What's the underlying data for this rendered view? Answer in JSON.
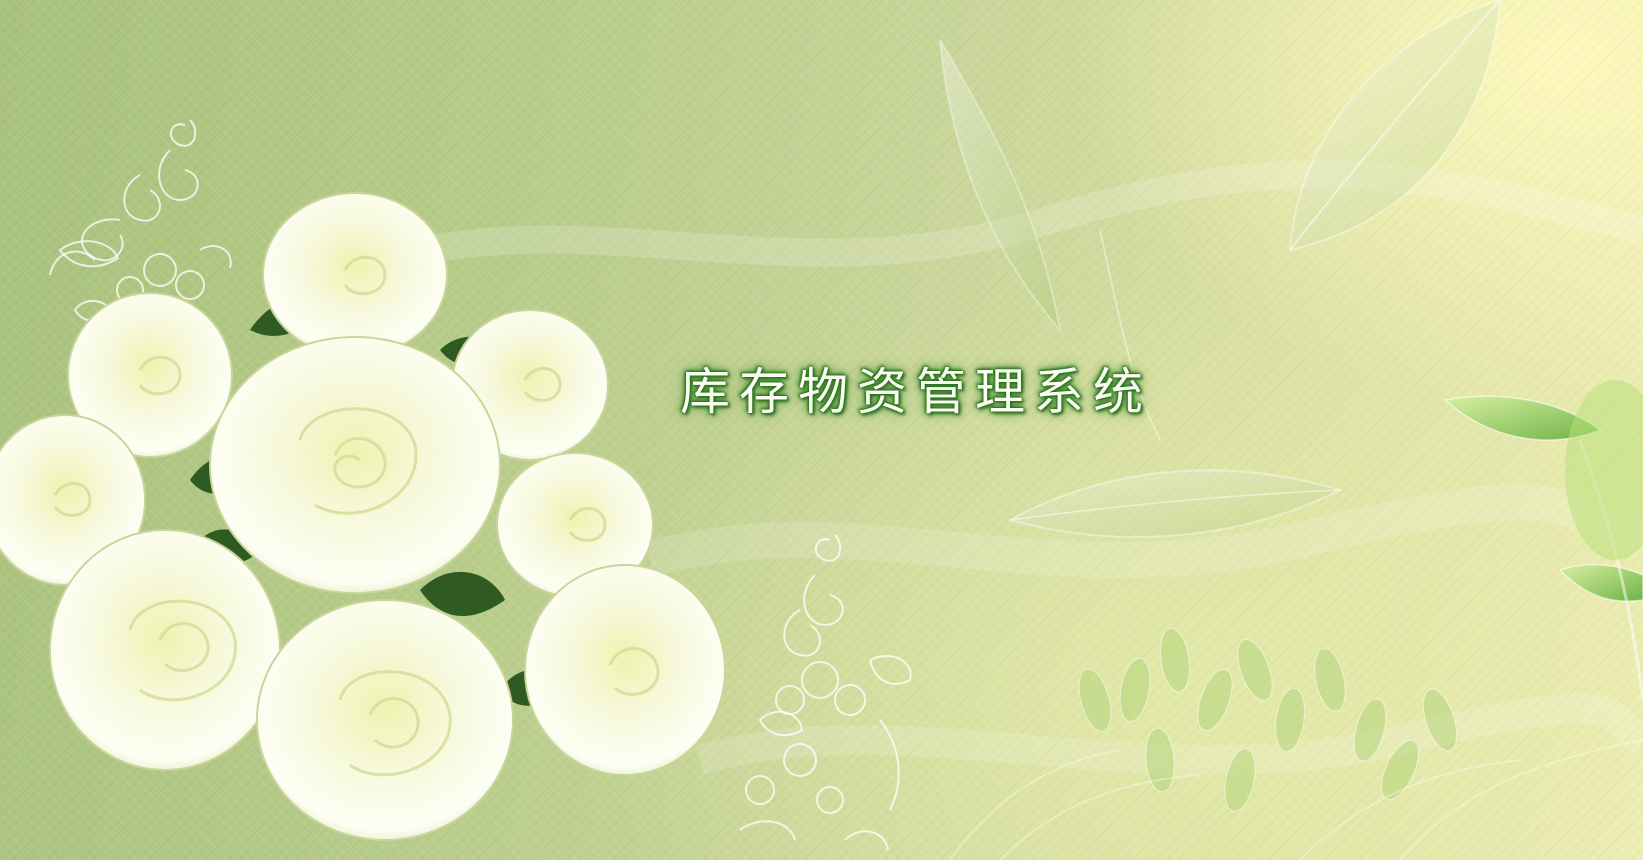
{
  "app": {
    "title": "库存物资管理系统"
  },
  "colors": {
    "background_light": "#efeeb4",
    "background_dark": "#a9c27e",
    "title_text": "#fbfdf2",
    "title_glow": "#2e7a22",
    "rose_petal": "#f6f9dc",
    "leaf_dark": "#2f5a22"
  },
  "decorations": {
    "roses": "white-rose-bouquet",
    "leaves": "green-leaf-illustration",
    "floral_lines": "white-lace-floral-outline"
  }
}
